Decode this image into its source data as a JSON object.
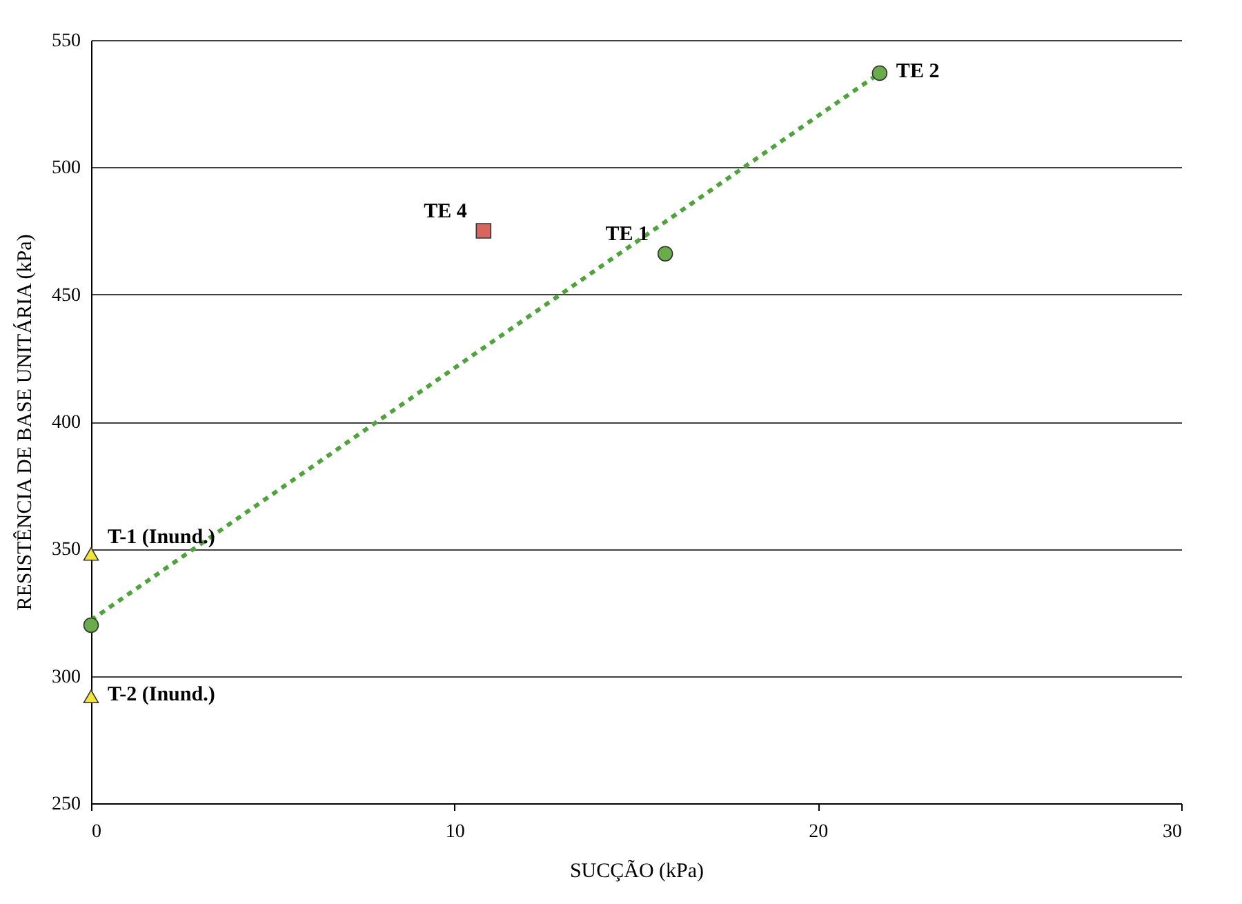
{
  "chart_data": {
    "type": "scatter",
    "xlabel": "SUCÇÃO (kPa)",
    "ylabel": "RESISTÊNCIA DE BASE UNITÁRIA (kPa)",
    "xlim": [
      0,
      30
    ],
    "xticks": [
      0,
      10,
      20,
      30
    ],
    "ylim": [
      250,
      550
    ],
    "yticks": [
      250,
      300,
      350,
      400,
      450,
      500,
      550
    ],
    "grid": "y",
    "series": [
      {
        "type": "line",
        "color": "#4ea33a",
        "line_style": "dashed",
        "marker": "none",
        "x": [
          0,
          21.7
        ],
        "values": [
          322,
          537
        ]
      },
      {
        "color": "#6aac4a",
        "marker": "circle",
        "x": [
          0,
          15.8,
          21.7
        ],
        "values": [
          320,
          466,
          537
        ]
      },
      {
        "color": "#d9665c",
        "marker": "square",
        "x": [
          10.8
        ],
        "values": [
          475
        ]
      },
      {
        "color": "#f3e43c",
        "marker": "triangle",
        "x": [
          0,
          0
        ],
        "values": [
          348,
          292
        ]
      }
    ],
    "annotations": [
      {
        "text": "TE 2",
        "x": 21.7,
        "y": 537
      },
      {
        "text": "TE 1",
        "x": 15.8,
        "y": 466
      },
      {
        "text": "TE 4",
        "x": 10.8,
        "y": 475
      },
      {
        "text": "T-1 (Inund.)",
        "x": 0,
        "y": 348
      },
      {
        "text": "T-2 (Inund.)",
        "x": 0,
        "y": 292
      }
    ]
  }
}
